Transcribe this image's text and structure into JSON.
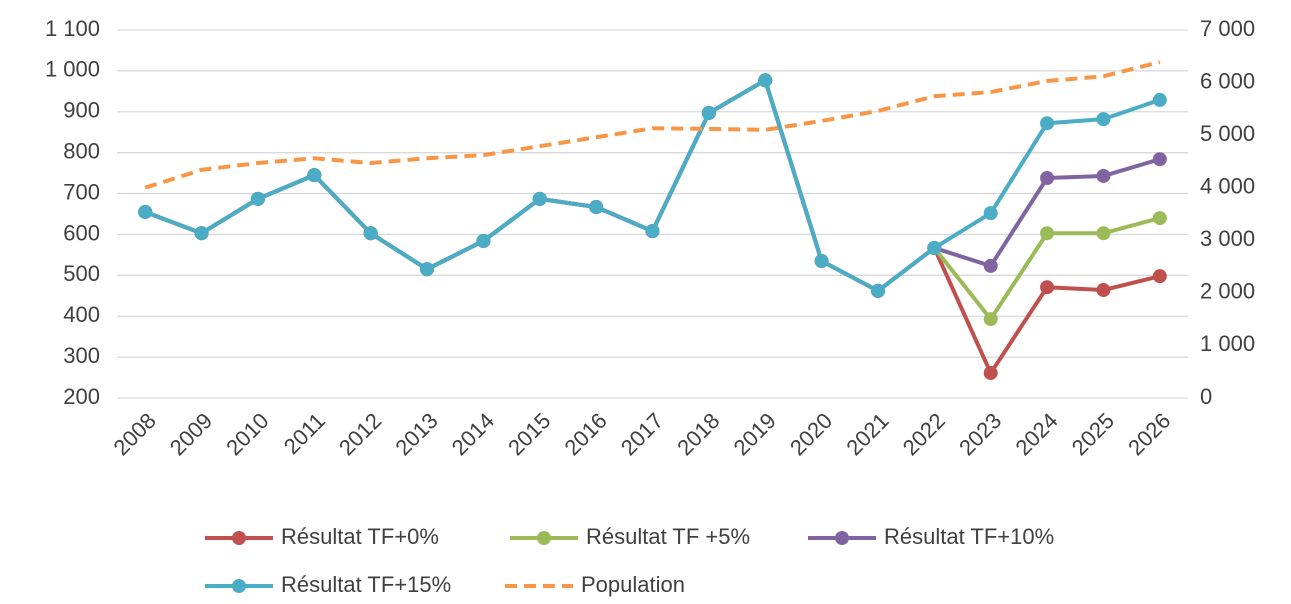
{
  "chart_data": {
    "type": "line",
    "categories": [
      "2008",
      "2009",
      "2010",
      "2011",
      "2012",
      "2013",
      "2014",
      "2015",
      "2016",
      "2017",
      "2018",
      "2019",
      "2020",
      "2021",
      "2022",
      "2023",
      "2024",
      "2025",
      "2026"
    ],
    "series": [
      {
        "name": "Résultat TF+0%",
        "color": "#c0504d",
        "values": [
          655,
          603,
          687,
          745,
          603,
          515,
          584,
          687,
          667,
          608,
          897,
          977,
          535,
          462,
          567,
          261,
          471,
          464,
          498
        ]
      },
      {
        "name": "Résultat TF +5%",
        "color": "#9bbb59",
        "values": [
          655,
          603,
          687,
          745,
          603,
          515,
          584,
          687,
          667,
          608,
          897,
          977,
          535,
          462,
          567,
          393,
          603,
          603,
          640
        ]
      },
      {
        "name": "Résultat TF+10%",
        "color": "#8064a2",
        "values": [
          655,
          603,
          687,
          745,
          603,
          515,
          584,
          687,
          667,
          608,
          897,
          977,
          535,
          462,
          567,
          523,
          738,
          743,
          784
        ]
      },
      {
        "name": "Résultat TF+15%",
        "color": "#4bacc6",
        "values": [
          655,
          603,
          687,
          745,
          603,
          515,
          584,
          687,
          667,
          608,
          897,
          977,
          535,
          462,
          567,
          652,
          872,
          882,
          929
        ]
      },
      {
        "name": "Population",
        "color": "#f79646",
        "axis": "y2",
        "dashed": true,
        "values": [
          4000,
          4340,
          4470,
          4560,
          4470,
          4560,
          4620,
          4790,
          4960,
          5130,
          5120,
          5100,
          5270,
          5460,
          5740,
          5820,
          6030,
          6120,
          6390
        ]
      }
    ],
    "ylim": [
      200,
      1100
    ],
    "yticks": [
      200,
      300,
      400,
      500,
      600,
      700,
      800,
      900,
      {
        "value": 1000,
        "label": "1 000"
      },
      {
        "value": 1100,
        "label": "1 100"
      }
    ],
    "y2lim": [
      0,
      7000
    ],
    "y2ticks": [
      0,
      {
        "value": 1000,
        "label": "1 000"
      },
      {
        "value": 2000,
        "label": "2 000"
      },
      {
        "value": 3000,
        "label": "3 000"
      },
      {
        "value": 4000,
        "label": "4 000"
      },
      {
        "value": 5000,
        "label": "5 000"
      },
      {
        "value": 6000,
        "label": "6 000"
      },
      {
        "value": 7000,
        "label": "7 000"
      }
    ],
    "grid": true
  }
}
